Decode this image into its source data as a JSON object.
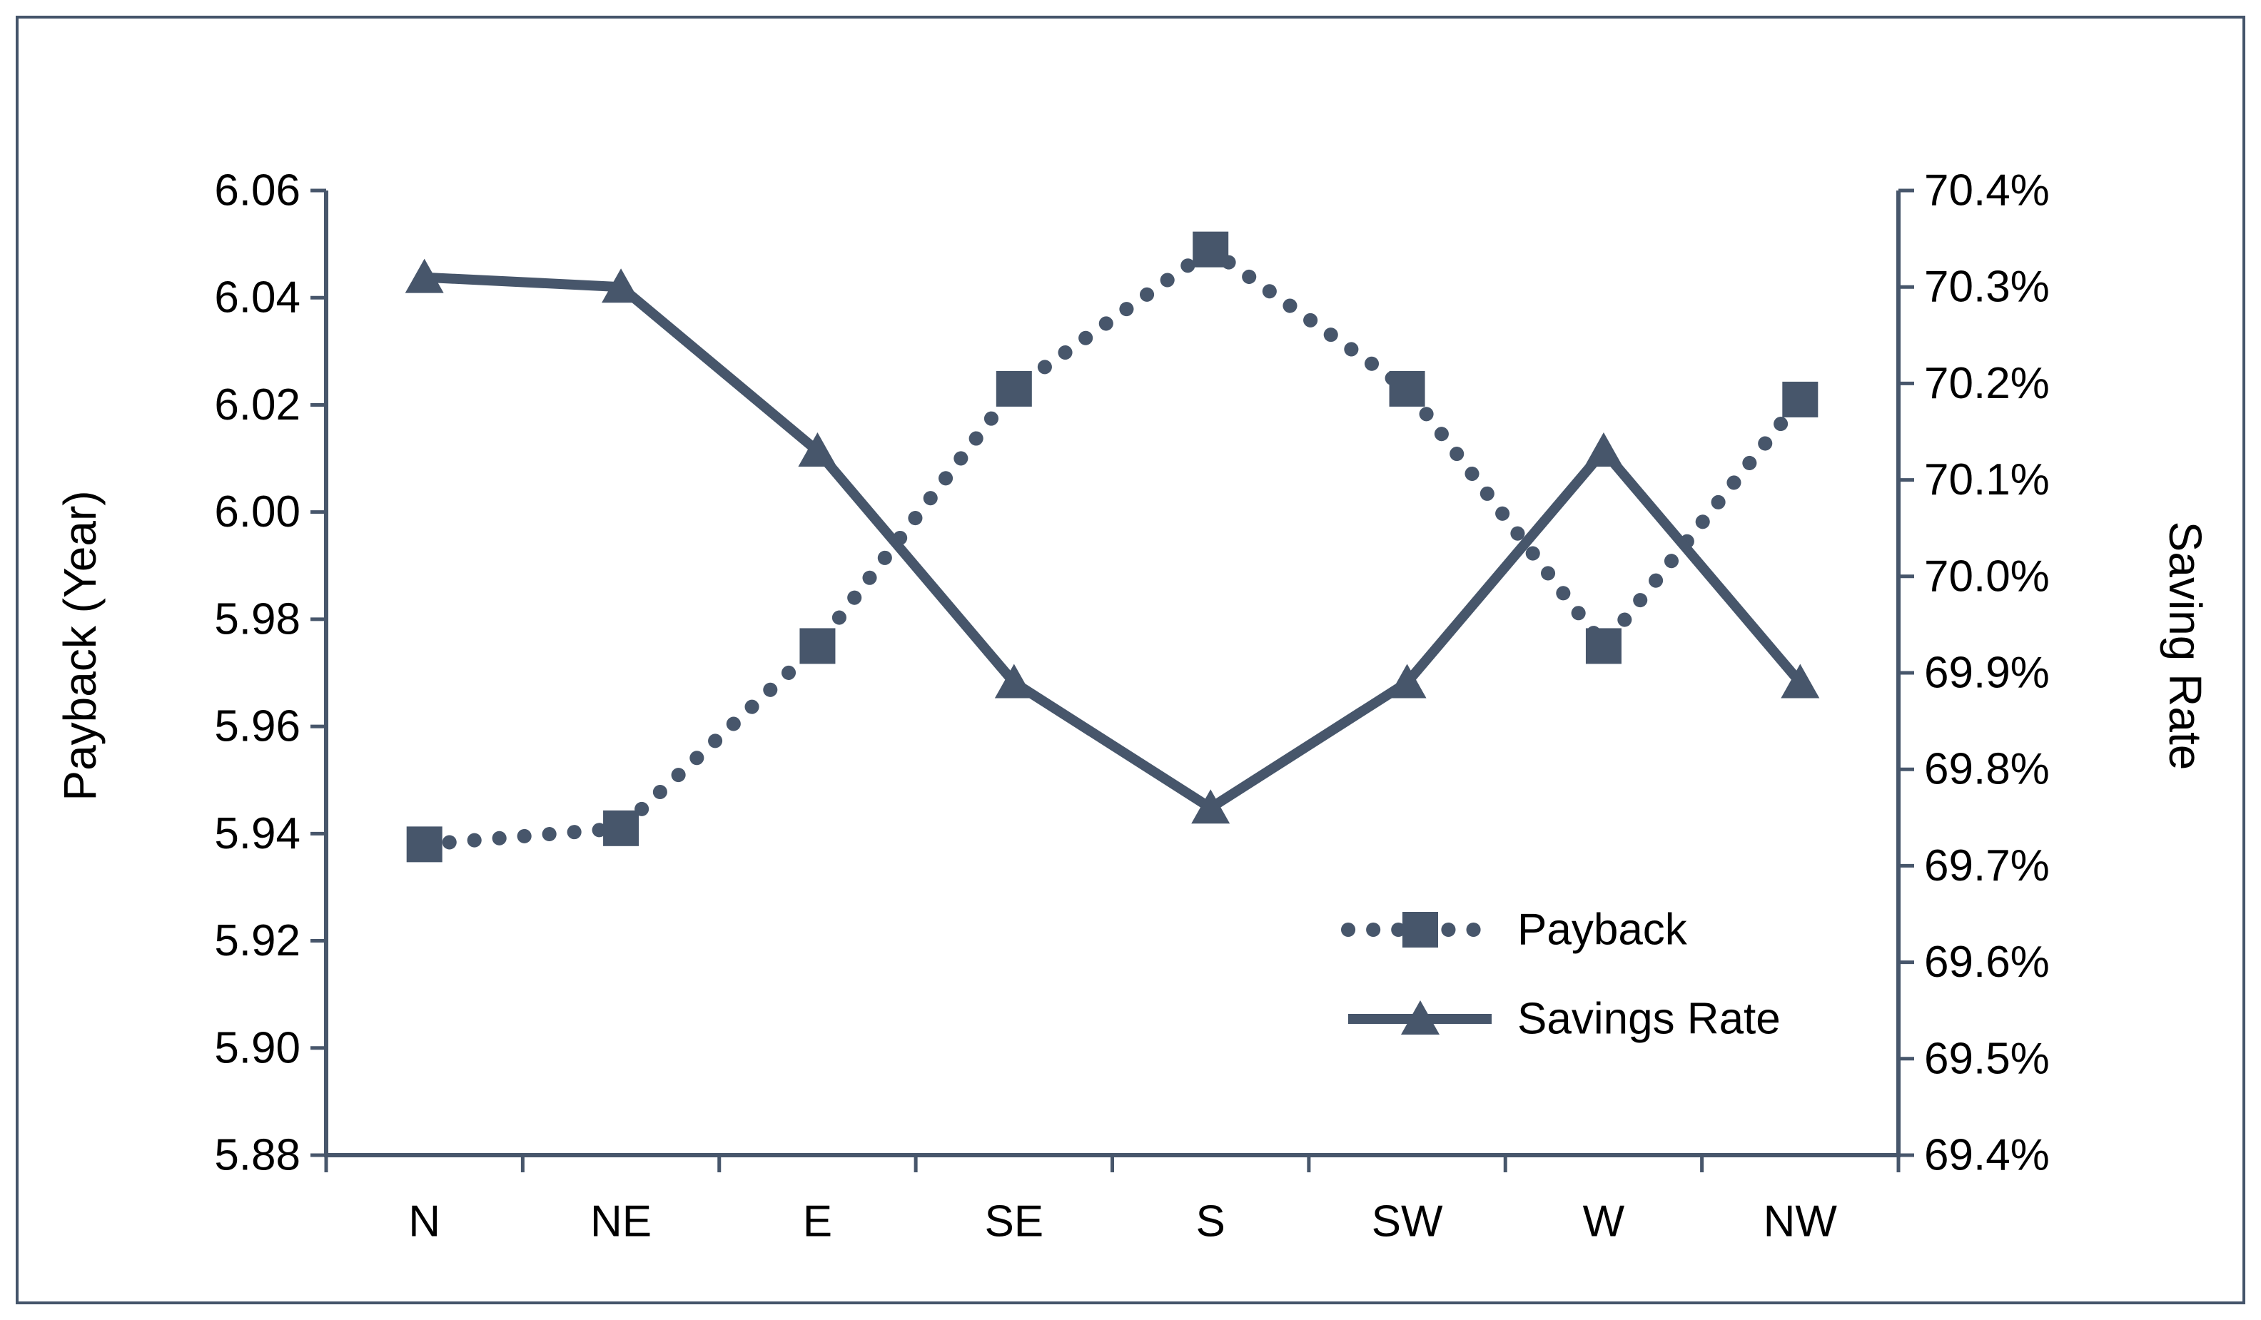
{
  "chart_data": {
    "type": "line",
    "title": "",
    "categories": [
      "N",
      "NE",
      "E",
      "SE",
      "S",
      "SW",
      "W",
      "NW"
    ],
    "series": [
      {
        "name": "Payback",
        "axis": "left",
        "line_style": "dotted",
        "marker": "square",
        "values": [
          5.938,
          5.941,
          5.975,
          6.023,
          6.049,
          6.023,
          5.975,
          6.021
        ]
      },
      {
        "name": "Savings Rate",
        "axis": "right",
        "line_style": "solid",
        "marker": "triangle",
        "values": [
          70.31,
          70.3,
          70.13,
          69.89,
          69.76,
          69.89,
          70.13,
          69.89
        ]
      }
    ],
    "left_axis": {
      "title": "Payback (Year)",
      "min": 5.88,
      "max": 6.06,
      "step": 0.02,
      "tick_labels": [
        "6.06",
        "6.04",
        "6.02",
        "6.00",
        "5.98",
        "5.96",
        "5.94",
        "5.92",
        "5.90",
        "5.88"
      ]
    },
    "right_axis": {
      "title": "Saving Rate",
      "min": 69.4,
      "max": 70.4,
      "step": 0.1,
      "tick_labels": [
        "70.4%",
        "70.3%",
        "70.2%",
        "70.1%",
        "70.0%",
        "69.9%",
        "69.8%",
        "69.7%",
        "69.6%",
        "69.5%",
        "69.4%"
      ]
    },
    "legend": {
      "position": "inside-bottom-right",
      "entries": [
        "Payback",
        "Savings Rate"
      ]
    },
    "grid": false,
    "colors": {
      "series": "#47566b",
      "axis": "#47566b",
      "text": "#000000",
      "frame": "#44546a",
      "background": "#ffffff"
    }
  }
}
